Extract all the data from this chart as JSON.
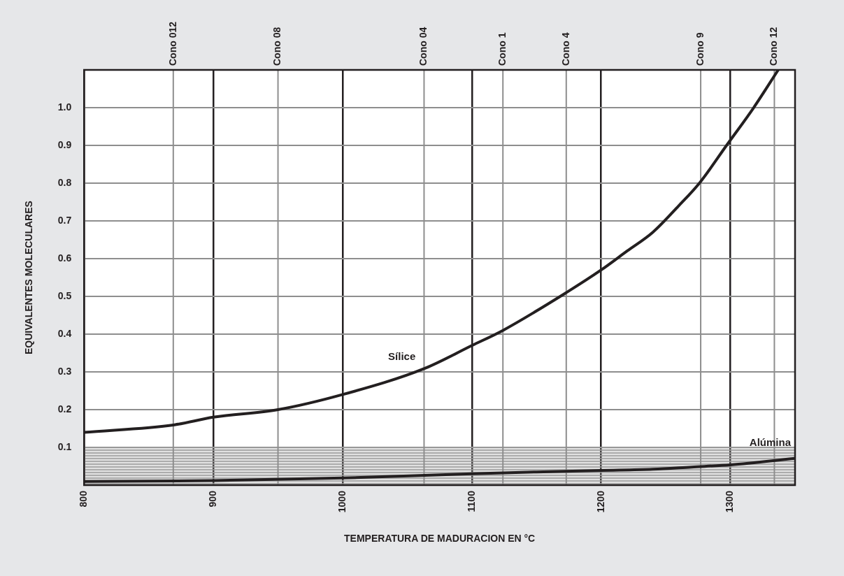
{
  "chart_data": {
    "type": "line",
    "xlabel": "TEMPERATURA DE MADURACION EN °C",
    "ylabel": "EQUIVALENTES MOLECULARES",
    "xlim": [
      800,
      1350
    ],
    "xticks": [
      800,
      900,
      1000,
      1100,
      1200,
      1300
    ],
    "ref_lines": [
      {
        "axis": "x",
        "value": 869,
        "label": "Cono 012",
        "color": "#8e8e8e"
      },
      {
        "axis": "x",
        "value": 950,
        "label": "Cono 08",
        "color": "#8e8e8e"
      },
      {
        "axis": "x",
        "value": 1063,
        "label": "Cono 04",
        "color": "#8e8e8e"
      },
      {
        "axis": "x",
        "value": 1124,
        "label": "Cono 1",
        "color": "#8e8e8e"
      },
      {
        "axis": "x",
        "value": 1173,
        "label": "Cono 4",
        "color": "#8e8e8e"
      },
      {
        "axis": "x",
        "value": 1277,
        "label": "Cono 9",
        "color": "#8e8e8e"
      },
      {
        "axis": "x",
        "value": 1334,
        "label": "Cono 12",
        "color": "#8e8e8e"
      }
    ],
    "ylim": [
      0,
      1.1
    ],
    "yticks": [
      0.1,
      0.2,
      0.3,
      0.4,
      0.5,
      0.6,
      0.7,
      0.8,
      0.9,
      {
        "value": 1,
        "label": "1.0"
      }
    ],
    "grid": true,
    "marker": "none",
    "line_style": "solid",
    "bands": [
      {
        "axis": "y",
        "from": 0,
        "to": 0.1,
        "color": "#9a9a9a"
      }
    ],
    "series": [
      {
        "name": "Sílice",
        "color": "#231f20",
        "x": [
          800,
          870,
          900,
          950,
          1000,
          1064,
          1100,
          1124,
          1173,
          1200,
          1220,
          1240,
          1260,
          1276,
          1297,
          1318,
          1337
        ],
        "values": [
          0.14,
          0.16,
          0.18,
          0.2,
          0.24,
          0.31,
          0.37,
          0.41,
          0.51,
          0.57,
          0.62,
          0.67,
          0.74,
          0.8,
          0.9,
          1.0,
          1.1
        ]
      },
      {
        "name": "Alúmina",
        "color": "#231f20",
        "x": [
          800,
          900,
          1000,
          1100,
          1150,
          1200,
          1240,
          1270,
          1300,
          1350
        ],
        "values": [
          0.01,
          0.012,
          0.019,
          0.03,
          0.035,
          0.039,
          0.042,
          0.048,
          0.054,
          0.071
        ]
      }
    ]
  }
}
